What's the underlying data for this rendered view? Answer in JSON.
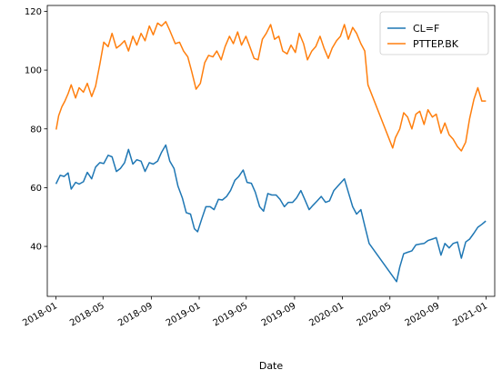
{
  "chart_data": {
    "type": "line",
    "title": "",
    "xlabel": "Date",
    "ylabel": "",
    "xlim": [
      "2017-12-10",
      "2021-01-23"
    ],
    "ylim": [
      23,
      122
    ],
    "grid": false,
    "legend_placement": "top-right",
    "x_ticks": [
      "2018-01",
      "2018-05",
      "2018-09",
      "2019-01",
      "2019-05",
      "2019-09",
      "2020-01",
      "2020-05",
      "2020-09",
      "2021-01"
    ],
    "y_ticks": [
      40,
      60,
      80,
      100,
      120
    ],
    "series": [
      {
        "name": "CL=F",
        "color": "#1f77b4",
        "points": [
          [
            "2018-01-02",
            61.5
          ],
          [
            "2018-01-12",
            64.2
          ],
          [
            "2018-01-22",
            63.8
          ],
          [
            "2018-02-01",
            65.0
          ],
          [
            "2018-02-09",
            59.5
          ],
          [
            "2018-02-20",
            61.8
          ],
          [
            "2018-03-01",
            61.2
          ],
          [
            "2018-03-12",
            62.0
          ],
          [
            "2018-03-22",
            65.2
          ],
          [
            "2018-04-02",
            63.0
          ],
          [
            "2018-04-12",
            67.0
          ],
          [
            "2018-04-23",
            68.5
          ],
          [
            "2018-05-03",
            68.2
          ],
          [
            "2018-05-14",
            71.0
          ],
          [
            "2018-05-24",
            70.5
          ],
          [
            "2018-06-04",
            65.5
          ],
          [
            "2018-06-14",
            66.5
          ],
          [
            "2018-06-25",
            68.5
          ],
          [
            "2018-07-05",
            73.0
          ],
          [
            "2018-07-16",
            68.0
          ],
          [
            "2018-07-26",
            69.5
          ],
          [
            "2018-08-06",
            69.0
          ],
          [
            "2018-08-16",
            65.5
          ],
          [
            "2018-08-27",
            68.5
          ],
          [
            "2018-09-06",
            68.0
          ],
          [
            "2018-09-17",
            69.0
          ],
          [
            "2018-09-27",
            72.0
          ],
          [
            "2018-10-08",
            74.5
          ],
          [
            "2018-10-18",
            69.0
          ],
          [
            "2018-10-29",
            66.5
          ],
          [
            "2018-11-08",
            60.5
          ],
          [
            "2018-11-19",
            56.5
          ],
          [
            "2018-11-29",
            51.5
          ],
          [
            "2018-12-10",
            51.0
          ],
          [
            "2018-12-20",
            46.0
          ],
          [
            "2018-12-28",
            45.0
          ],
          [
            "2019-01-08",
            49.5
          ],
          [
            "2019-01-18",
            53.5
          ],
          [
            "2019-01-29",
            53.5
          ],
          [
            "2019-02-08",
            52.5
          ],
          [
            "2019-02-19",
            56.0
          ],
          [
            "2019-03-01",
            55.8
          ],
          [
            "2019-03-12",
            57.0
          ],
          [
            "2019-03-22",
            59.0
          ],
          [
            "2019-04-02",
            62.5
          ],
          [
            "2019-04-12",
            63.8
          ],
          [
            "2019-04-23",
            66.0
          ],
          [
            "2019-05-03",
            61.8
          ],
          [
            "2019-05-14",
            61.5
          ],
          [
            "2019-05-24",
            58.5
          ],
          [
            "2019-06-04",
            53.5
          ],
          [
            "2019-06-14",
            52.0
          ],
          [
            "2019-06-25",
            58.0
          ],
          [
            "2019-07-05",
            57.5
          ],
          [
            "2019-07-16",
            57.5
          ],
          [
            "2019-07-26",
            56.0
          ],
          [
            "2019-08-06",
            53.5
          ],
          [
            "2019-08-16",
            55.0
          ],
          [
            "2019-08-27",
            55.0
          ],
          [
            "2019-09-06",
            56.5
          ],
          [
            "2019-09-17",
            59.0
          ],
          [
            "2019-09-27",
            56.0
          ],
          [
            "2019-10-08",
            52.5
          ],
          [
            "2019-10-18",
            54.0
          ],
          [
            "2019-10-29",
            55.5
          ],
          [
            "2019-11-08",
            57.0
          ],
          [
            "2019-11-19",
            55.0
          ],
          [
            "2019-11-29",
            55.5
          ],
          [
            "2019-12-10",
            59.0
          ],
          [
            "2019-12-20",
            60.5
          ],
          [
            "2020-01-06",
            63.0
          ],
          [
            "2020-01-16",
            58.5
          ],
          [
            "2020-01-27",
            53.5
          ],
          [
            "2020-02-06",
            51.0
          ],
          [
            "2020-02-17",
            52.5
          ],
          [
            "2020-02-27",
            47.0
          ],
          [
            "2020-03-09",
            41.0
          ],
          [
            "2020-05-18",
            28.0
          ],
          [
            "2020-05-26",
            33.0
          ],
          [
            "2020-06-05",
            37.5
          ],
          [
            "2020-06-15",
            38.0
          ],
          [
            "2020-06-26",
            38.5
          ],
          [
            "2020-07-06",
            40.5
          ],
          [
            "2020-07-16",
            40.8
          ],
          [
            "2020-07-27",
            41.0
          ],
          [
            "2020-08-06",
            42.0
          ],
          [
            "2020-08-17",
            42.5
          ],
          [
            "2020-08-27",
            43.0
          ],
          [
            "2020-09-08",
            37.0
          ],
          [
            "2020-09-18",
            41.0
          ],
          [
            "2020-09-29",
            39.5
          ],
          [
            "2020-10-09",
            41.0
          ],
          [
            "2020-10-20",
            41.5
          ],
          [
            "2020-10-30",
            36.0
          ],
          [
            "2020-11-10",
            41.5
          ],
          [
            "2020-11-20",
            42.5
          ],
          [
            "2020-12-01",
            44.5
          ],
          [
            "2020-12-11",
            46.5
          ],
          [
            "2020-12-21",
            47.5
          ],
          [
            "2020-12-30",
            48.5
          ]
        ]
      },
      {
        "name": "PTTEP.BK",
        "color": "#ff7f0e",
        "points": [
          [
            "2018-01-02",
            80.0
          ],
          [
            "2018-01-08",
            84.5
          ],
          [
            "2018-01-16",
            87.5
          ],
          [
            "2018-01-24",
            89.5
          ],
          [
            "2018-02-01",
            92.0
          ],
          [
            "2018-02-09",
            95.0
          ],
          [
            "2018-02-20",
            90.5
          ],
          [
            "2018-03-01",
            94.0
          ],
          [
            "2018-03-12",
            92.5
          ],
          [
            "2018-03-22",
            95.5
          ],
          [
            "2018-04-02",
            91.0
          ],
          [
            "2018-04-12",
            94.5
          ],
          [
            "2018-04-23",
            102.0
          ],
          [
            "2018-05-03",
            109.5
          ],
          [
            "2018-05-14",
            108.0
          ],
          [
            "2018-05-24",
            112.5
          ],
          [
            "2018-06-04",
            107.5
          ],
          [
            "2018-06-14",
            108.5
          ],
          [
            "2018-06-25",
            110.0
          ],
          [
            "2018-07-05",
            106.5
          ],
          [
            "2018-07-16",
            111.5
          ],
          [
            "2018-07-26",
            108.5
          ],
          [
            "2018-08-06",
            112.5
          ],
          [
            "2018-08-16",
            110.0
          ],
          [
            "2018-08-27",
            115.0
          ],
          [
            "2018-09-06",
            112.0
          ],
          [
            "2018-09-17",
            116.0
          ],
          [
            "2018-09-27",
            115.0
          ],
          [
            "2018-10-08",
            116.5
          ],
          [
            "2018-10-18",
            113.5
          ],
          [
            "2018-11-01",
            109.0
          ],
          [
            "2018-11-12",
            109.5
          ],
          [
            "2018-11-22",
            106.5
          ],
          [
            "2018-12-03",
            104.5
          ],
          [
            "2018-12-13",
            99.5
          ],
          [
            "2018-12-24",
            93.5
          ],
          [
            "2019-01-04",
            95.5
          ],
          [
            "2019-01-15",
            102.5
          ],
          [
            "2019-01-25",
            105.0
          ],
          [
            "2019-02-05",
            104.5
          ],
          [
            "2019-02-15",
            106.5
          ],
          [
            "2019-02-26",
            103.5
          ],
          [
            "2019-03-08",
            108.0
          ],
          [
            "2019-03-19",
            111.5
          ],
          [
            "2019-03-29",
            109.0
          ],
          [
            "2019-04-09",
            113.0
          ],
          [
            "2019-04-19",
            108.5
          ],
          [
            "2019-04-30",
            111.5
          ],
          [
            "2019-05-10",
            108.0
          ],
          [
            "2019-05-21",
            104.0
          ],
          [
            "2019-05-31",
            103.5
          ],
          [
            "2019-06-11",
            110.5
          ],
          [
            "2019-06-21",
            112.5
          ],
          [
            "2019-07-02",
            115.5
          ],
          [
            "2019-07-12",
            110.5
          ],
          [
            "2019-07-23",
            111.5
          ],
          [
            "2019-08-02",
            106.5
          ],
          [
            "2019-08-13",
            105.5
          ],
          [
            "2019-08-23",
            108.5
          ],
          [
            "2019-09-03",
            106.0
          ],
          [
            "2019-09-13",
            112.5
          ],
          [
            "2019-09-24",
            109.0
          ],
          [
            "2019-10-04",
            103.5
          ],
          [
            "2019-10-15",
            106.5
          ],
          [
            "2019-10-25",
            108.0
          ],
          [
            "2019-11-05",
            111.5
          ],
          [
            "2019-11-15",
            107.5
          ],
          [
            "2019-11-26",
            104.0
          ],
          [
            "2019-12-06",
            107.5
          ],
          [
            "2019-12-17",
            110.0
          ],
          [
            "2019-12-27",
            111.5
          ],
          [
            "2020-01-06",
            115.5
          ],
          [
            "2020-01-16",
            110.5
          ],
          [
            "2020-01-27",
            114.5
          ],
          [
            "2020-02-06",
            112.5
          ],
          [
            "2020-02-17",
            109.0
          ],
          [
            "2020-02-27",
            106.5
          ],
          [
            "2020-03-06",
            95.0
          ],
          [
            "2020-05-08",
            73.5
          ],
          [
            "2020-05-15",
            77.0
          ],
          [
            "2020-05-26",
            80.0
          ],
          [
            "2020-06-05",
            85.5
          ],
          [
            "2020-06-15",
            84.0
          ],
          [
            "2020-06-26",
            80.0
          ],
          [
            "2020-07-06",
            85.0
          ],
          [
            "2020-07-16",
            86.0
          ],
          [
            "2020-07-27",
            81.5
          ],
          [
            "2020-08-06",
            86.5
          ],
          [
            "2020-08-17",
            84.0
          ],
          [
            "2020-08-27",
            85.0
          ],
          [
            "2020-09-08",
            78.5
          ],
          [
            "2020-09-18",
            82.0
          ],
          [
            "2020-09-29",
            78.0
          ],
          [
            "2020-10-09",
            76.5
          ],
          [
            "2020-10-20",
            74.0
          ],
          [
            "2020-10-30",
            72.5
          ],
          [
            "2020-11-10",
            75.5
          ],
          [
            "2020-11-20",
            83.5
          ],
          [
            "2020-12-01",
            90.0
          ],
          [
            "2020-12-11",
            94.0
          ],
          [
            "2020-12-21",
            89.5
          ],
          [
            "2020-12-30",
            89.5
          ]
        ]
      }
    ]
  }
}
